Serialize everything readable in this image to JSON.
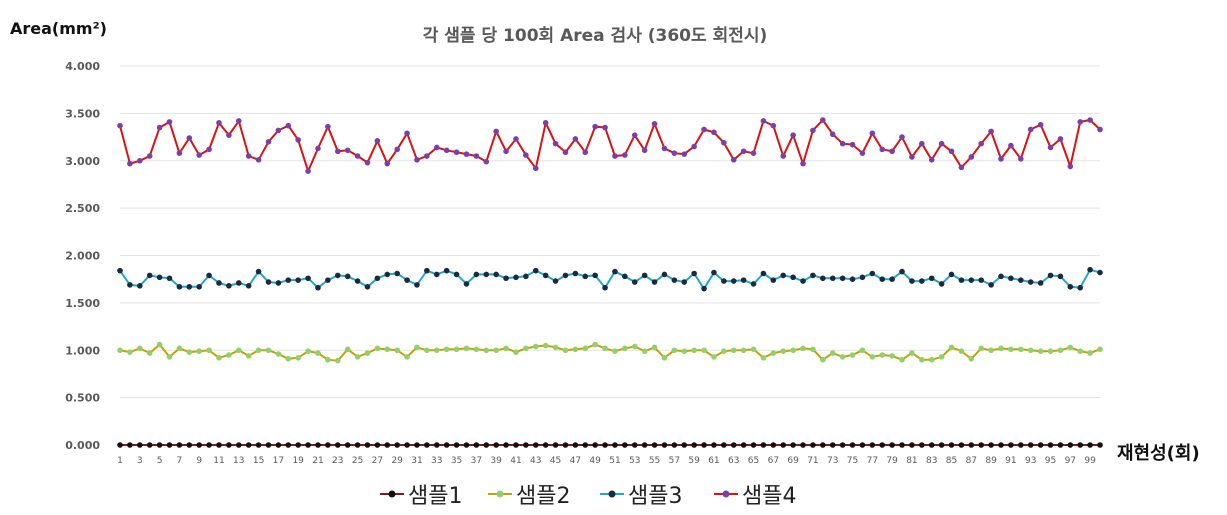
{
  "chart_data": {
    "type": "line",
    "title": "각 샘플 당 100회 Area 검사 (360도 회전시)",
    "ylabel": "Area(mm²)",
    "xlabel": "재현성(회)",
    "ylim": [
      0,
      4
    ],
    "yticks": [
      "0.000",
      "0.500",
      "1.000",
      "1.500",
      "2.000",
      "2.500",
      "3.000",
      "3.500",
      "4.000"
    ],
    "xticks": [
      "1",
      "3",
      "5",
      "7",
      "9",
      "11",
      "13",
      "15",
      "17",
      "19",
      "21",
      "23",
      "25",
      "27",
      "29",
      "31",
      "33",
      "35",
      "37",
      "39",
      "41",
      "43",
      "45",
      "47",
      "49",
      "51",
      "53",
      "55",
      "57",
      "59",
      "61",
      "63",
      "65",
      "67",
      "69",
      "71",
      "73",
      "75",
      "77",
      "79",
      "81",
      "83",
      "85",
      "87",
      "89",
      "91",
      "93",
      "95",
      "97",
      "99"
    ],
    "grid": true,
    "legend_position": "bottom",
    "x": [
      1,
      2,
      3,
      4,
      5,
      6,
      7,
      8,
      9,
      10,
      11,
      12,
      13,
      14,
      15,
      16,
      17,
      18,
      19,
      20,
      21,
      22,
      23,
      24,
      25,
      26,
      27,
      28,
      29,
      30,
      31,
      32,
      33,
      34,
      35,
      36,
      37,
      38,
      39,
      40,
      41,
      42,
      43,
      44,
      45,
      46,
      47,
      48,
      49,
      50,
      51,
      52,
      53,
      54,
      55,
      56,
      57,
      58,
      59,
      60,
      61,
      62,
      63,
      64,
      65,
      66,
      67,
      68,
      69,
      70,
      71,
      72,
      73,
      74,
      75,
      76,
      77,
      78,
      79,
      80,
      81,
      82,
      83,
      84,
      85,
      86,
      87,
      88,
      89,
      90,
      91,
      92,
      93,
      94,
      95,
      96,
      97,
      98,
      99,
      100
    ],
    "series": [
      {
        "name": "샘플1",
        "line_color": "#7f1d1d",
        "marker_color": "#111111",
        "values": [
          0,
          0,
          0,
          0,
          0,
          0,
          0,
          0,
          0,
          0,
          0,
          0,
          0,
          0,
          0,
          0,
          0,
          0,
          0,
          0,
          0,
          0,
          0,
          0,
          0,
          0,
          0,
          0,
          0,
          0,
          0,
          0,
          0,
          0,
          0,
          0,
          0,
          0,
          0,
          0,
          0,
          0,
          0,
          0,
          0,
          0,
          0,
          0,
          0,
          0,
          0,
          0,
          0,
          0,
          0,
          0,
          0,
          0,
          0,
          0,
          0,
          0,
          0,
          0,
          0,
          0,
          0,
          0,
          0,
          0,
          0,
          0,
          0,
          0,
          0,
          0,
          0,
          0,
          0,
          0,
          0,
          0,
          0,
          0,
          0,
          0,
          0,
          0,
          0,
          0,
          0,
          0,
          0,
          0,
          0,
          0,
          0,
          0,
          0,
          0
        ]
      },
      {
        "name": "샘플2",
        "line_color": "#c8a000",
        "marker_color": "#8fd16a",
        "values": [
          1.0,
          0.98,
          1.02,
          0.97,
          1.06,
          0.93,
          1.02,
          0.98,
          0.99,
          1.0,
          0.92,
          0.95,
          1.0,
          0.94,
          1.0,
          1.0,
          0.96,
          0.91,
          0.92,
          0.99,
          0.97,
          0.9,
          0.89,
          1.01,
          0.93,
          0.97,
          1.02,
          1.01,
          1.0,
          0.93,
          1.03,
          1.0,
          1.0,
          1.01,
          1.01,
          1.02,
          1.01,
          1.0,
          1.0,
          1.02,
          0.98,
          1.02,
          1.04,
          1.05,
          1.03,
          1.0,
          1.01,
          1.02,
          1.06,
          1.02,
          0.99,
          1.02,
          1.04,
          0.99,
          1.03,
          0.92,
          1.0,
          0.99,
          1.0,
          1.0,
          0.93,
          0.99,
          1.0,
          1.0,
          1.01,
          0.92,
          0.97,
          0.99,
          1.0,
          1.02,
          1.01,
          0.9,
          0.97,
          0.93,
          0.95,
          1.0,
          0.93,
          0.95,
          0.94,
          0.9,
          0.97,
          0.9,
          0.9,
          0.93,
          1.03,
          0.99,
          0.91,
          1.02,
          1.0,
          1.02,
          1.01,
          1.01,
          1.0,
          0.99,
          0.99,
          1.0,
          1.03,
          0.99,
          0.97,
          1.01
        ]
      },
      {
        "name": "샘플3",
        "line_color": "#1fa8c9",
        "marker_color": "#1a2a40",
        "values": [
          1.84,
          1.69,
          1.68,
          1.79,
          1.77,
          1.76,
          1.67,
          1.67,
          1.67,
          1.79,
          1.71,
          1.68,
          1.71,
          1.68,
          1.83,
          1.72,
          1.71,
          1.74,
          1.74,
          1.76,
          1.66,
          1.74,
          1.79,
          1.78,
          1.73,
          1.67,
          1.76,
          1.8,
          1.81,
          1.74,
          1.69,
          1.84,
          1.8,
          1.84,
          1.8,
          1.7,
          1.8,
          1.8,
          1.8,
          1.76,
          1.77,
          1.78,
          1.84,
          1.79,
          1.73,
          1.79,
          1.81,
          1.78,
          1.79,
          1.66,
          1.83,
          1.78,
          1.72,
          1.79,
          1.72,
          1.8,
          1.74,
          1.72,
          1.81,
          1.65,
          1.82,
          1.73,
          1.73,
          1.74,
          1.7,
          1.81,
          1.74,
          1.79,
          1.77,
          1.73,
          1.79,
          1.76,
          1.76,
          1.76,
          1.75,
          1.77,
          1.81,
          1.75,
          1.75,
          1.83,
          1.73,
          1.73,
          1.76,
          1.7,
          1.8,
          1.74,
          1.74,
          1.74,
          1.69,
          1.78,
          1.76,
          1.74,
          1.72,
          1.71,
          1.79,
          1.78,
          1.67,
          1.66,
          1.85,
          1.82
        ]
      },
      {
        "name": "샘플4",
        "line_color": "#dd1111",
        "marker_color": "#7a3fa8",
        "values": [
          3.37,
          2.97,
          3.0,
          3.05,
          3.35,
          3.41,
          3.08,
          3.24,
          3.06,
          3.12,
          3.4,
          3.27,
          3.42,
          3.05,
          3.01,
          3.2,
          3.32,
          3.37,
          3.22,
          2.89,
          3.13,
          3.36,
          3.1,
          3.11,
          3.05,
          2.98,
          3.21,
          2.97,
          3.12,
          3.29,
          3.01,
          3.05,
          3.14,
          3.11,
          3.09,
          3.07,
          3.05,
          2.99,
          3.31,
          3.1,
          3.23,
          3.06,
          2.92,
          3.4,
          3.18,
          3.09,
          3.23,
          3.09,
          3.36,
          3.35,
          3.05,
          3.06,
          3.27,
          3.11,
          3.39,
          3.13,
          3.08,
          3.07,
          3.15,
          3.33,
          3.3,
          3.19,
          3.01,
          3.1,
          3.08,
          3.42,
          3.37,
          3.05,
          3.27,
          2.97,
          3.32,
          3.43,
          3.28,
          3.18,
          3.17,
          3.08,
          3.29,
          3.12,
          3.1,
          3.25,
          3.04,
          3.18,
          3.01,
          3.18,
          3.1,
          2.93,
          3.04,
          3.18,
          3.31,
          3.02,
          3.16,
          3.02,
          3.33,
          3.38,
          3.14,
          3.23,
          2.94,
          3.41,
          3.43,
          3.33
        ]
      }
    ]
  }
}
